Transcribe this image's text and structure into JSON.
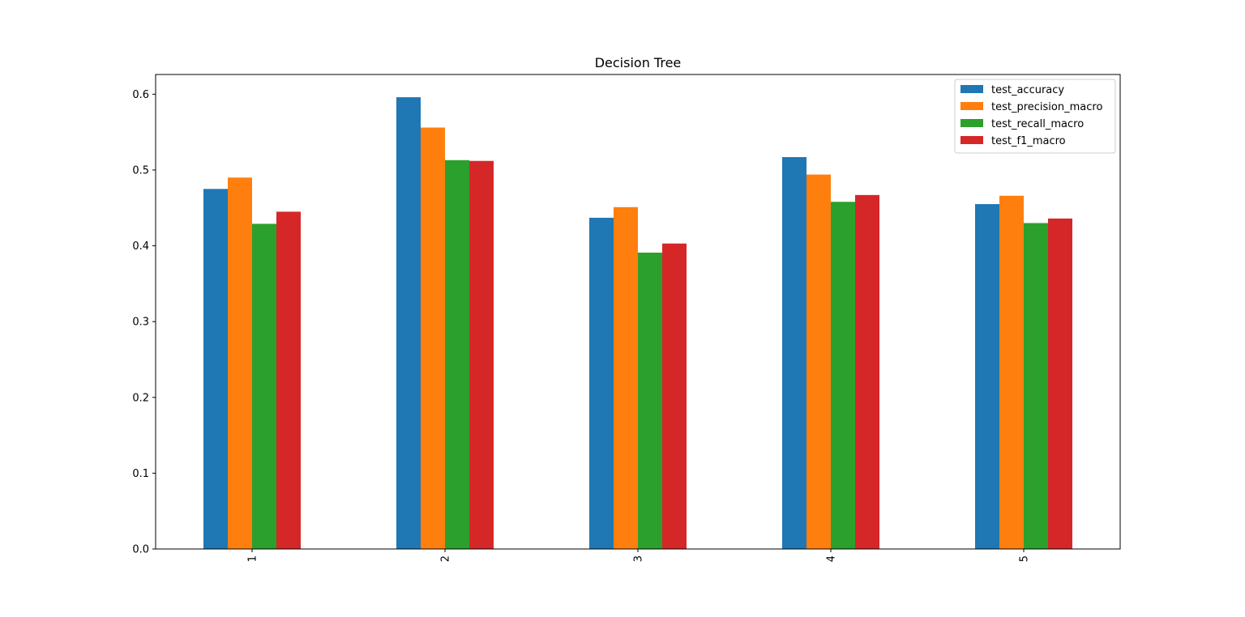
{
  "chart_data": {
    "type": "bar",
    "title": "Decision Tree",
    "xlabel": "",
    "ylabel": "",
    "categories": [
      "1",
      "2",
      "3",
      "4",
      "5"
    ],
    "series": [
      {
        "name": "test_accuracy",
        "color": "#1f77b4",
        "values": [
          0.475,
          0.596,
          0.437,
          0.517,
          0.455
        ]
      },
      {
        "name": "test_precision_macro",
        "color": "#ff7f0e",
        "values": [
          0.49,
          0.556,
          0.451,
          0.494,
          0.466
        ]
      },
      {
        "name": "test_recall_macro",
        "color": "#2ca02c",
        "values": [
          0.429,
          0.513,
          0.391,
          0.458,
          0.43
        ]
      },
      {
        "name": "test_f1_macro",
        "color": "#d62728",
        "values": [
          0.445,
          0.512,
          0.403,
          0.467,
          0.436
        ]
      }
    ],
    "ylim": [
      0,
      0.626
    ],
    "yticks": [
      "0.0",
      "0.1",
      "0.2",
      "0.3",
      "0.4",
      "0.5",
      "0.6"
    ],
    "grid": false,
    "legend_position": "top-right"
  }
}
